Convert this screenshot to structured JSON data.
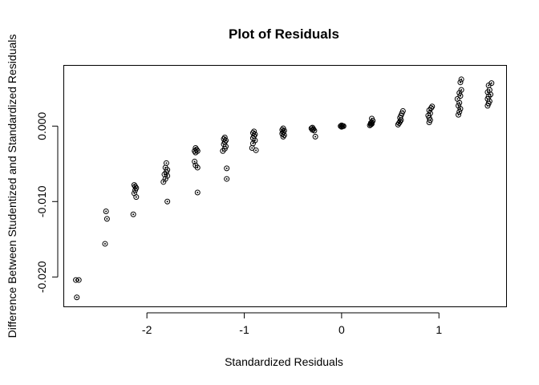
{
  "chart_data": {
    "type": "scatter",
    "title": "Plot of Residuals",
    "xlabel": "Standardized Residuals",
    "ylabel": "Difference Between Studentized and Standardized Residuals",
    "xlim": [
      -2.85,
      1.69
    ],
    "ylim": [
      -0.0239,
      0.008
    ],
    "xticks": [
      -2,
      -1,
      0,
      1
    ],
    "xtick_labels": [
      "-2",
      "-1",
      "0",
      "1"
    ],
    "yticks": [
      -0.02,
      -0.01,
      0.0
    ],
    "ytick_labels": [
      "-0.020",
      "-0.010",
      "0.000"
    ],
    "grid": false,
    "legend": "none",
    "points": [
      [
        -2.73,
        -0.0204
      ],
      [
        -2.7,
        -0.0204
      ],
      [
        -2.72,
        -0.0227
      ],
      [
        -2.42,
        -0.0113
      ],
      [
        -2.41,
        -0.0123
      ],
      [
        -2.43,
        -0.0156
      ],
      [
        -2.13,
        -0.0078
      ],
      [
        -2.12,
        -0.008
      ],
      [
        -2.11,
        -0.0082
      ],
      [
        -2.12,
        -0.0085
      ],
      [
        -2.13,
        -0.0089
      ],
      [
        -2.11,
        -0.0094
      ],
      [
        -2.14,
        -0.0117
      ],
      [
        -1.8,
        -0.0049
      ],
      [
        -1.81,
        -0.0055
      ],
      [
        -1.79,
        -0.0058
      ],
      [
        -1.8,
        -0.0061
      ],
      [
        -1.82,
        -0.0064
      ],
      [
        -1.79,
        -0.0066
      ],
      [
        -1.81,
        -0.007
      ],
      [
        -1.83,
        -0.0074
      ],
      [
        -1.79,
        -0.01
      ],
      [
        -1.5,
        -0.0029
      ],
      [
        -1.49,
        -0.0031
      ],
      [
        -1.51,
        -0.0033
      ],
      [
        -1.5,
        -0.0035
      ],
      [
        -1.48,
        -0.0033
      ],
      [
        -1.51,
        -0.0047
      ],
      [
        -1.5,
        -0.0052
      ],
      [
        -1.48,
        -0.0055
      ],
      [
        -1.48,
        -0.0088
      ],
      [
        -1.2,
        -0.0015
      ],
      [
        -1.21,
        -0.0017
      ],
      [
        -1.19,
        -0.0019
      ],
      [
        -1.2,
        -0.0021
      ],
      [
        -1.21,
        -0.0024
      ],
      [
        -1.19,
        -0.0027
      ],
      [
        -1.2,
        -0.003
      ],
      [
        -1.22,
        -0.0033
      ],
      [
        -1.18,
        -0.0056
      ],
      [
        -1.18,
        -0.007
      ],
      [
        -0.9,
        -0.0007
      ],
      [
        -0.91,
        -0.0009
      ],
      [
        -0.89,
        -0.0011
      ],
      [
        -0.9,
        -0.0013
      ],
      [
        -0.91,
        -0.0016
      ],
      [
        -0.89,
        -0.0019
      ],
      [
        -0.91,
        -0.0023
      ],
      [
        -0.92,
        -0.0029
      ],
      [
        -0.88,
        -0.0032
      ],
      [
        -0.6,
        -0.0003
      ],
      [
        -0.61,
        -0.0005
      ],
      [
        -0.59,
        -0.0006
      ],
      [
        -0.6,
        -0.0008
      ],
      [
        -0.61,
        -0.001
      ],
      [
        -0.59,
        -0.0012
      ],
      [
        -0.6,
        -0.0014
      ],
      [
        -0.3,
        -0.0002
      ],
      [
        -0.31,
        -0.0003
      ],
      [
        -0.29,
        -0.0004
      ],
      [
        -0.3,
        -0.0005
      ],
      [
        -0.28,
        -0.0006
      ],
      [
        -0.27,
        -0.0014
      ],
      [
        -0.01,
        0.0
      ],
      [
        0.0,
        0.0001
      ],
      [
        0.01,
        0.0
      ],
      [
        0.02,
        0.0
      ],
      [
        0.0,
        -0.0001
      ],
      [
        0.29,
        0.0001
      ],
      [
        0.3,
        0.0002
      ],
      [
        0.31,
        0.0003
      ],
      [
        0.3,
        0.0004
      ],
      [
        0.31,
        0.0005
      ],
      [
        0.32,
        0.0007
      ],
      [
        0.31,
        0.001
      ],
      [
        0.58,
        0.0002
      ],
      [
        0.59,
        0.0004
      ],
      [
        0.6,
        0.0006
      ],
      [
        0.61,
        0.0008
      ],
      [
        0.6,
        0.0011
      ],
      [
        0.61,
        0.0014
      ],
      [
        0.62,
        0.0017
      ],
      [
        0.63,
        0.002
      ],
      [
        0.9,
        0.0005
      ],
      [
        0.91,
        0.0008
      ],
      [
        0.9,
        0.0011
      ],
      [
        0.89,
        0.0014
      ],
      [
        0.91,
        0.0017
      ],
      [
        0.9,
        0.0021
      ],
      [
        0.92,
        0.0024
      ],
      [
        0.93,
        0.0026
      ],
      [
        1.2,
        0.0015
      ],
      [
        1.21,
        0.0019
      ],
      [
        1.22,
        0.0023
      ],
      [
        1.2,
        0.0027
      ],
      [
        1.21,
        0.0031
      ],
      [
        1.19,
        0.0036
      ],
      [
        1.22,
        0.004
      ],
      [
        1.21,
        0.0044
      ],
      [
        1.23,
        0.0048
      ],
      [
        1.22,
        0.0058
      ],
      [
        1.23,
        0.0062
      ],
      [
        1.5,
        0.0027
      ],
      [
        1.51,
        0.003
      ],
      [
        1.52,
        0.0033
      ],
      [
        1.5,
        0.0036
      ],
      [
        1.51,
        0.0039
      ],
      [
        1.53,
        0.0042
      ],
      [
        1.5,
        0.0045
      ],
      [
        1.52,
        0.0048
      ],
      [
        1.51,
        0.0054
      ],
      [
        1.54,
        0.0057
      ]
    ]
  }
}
